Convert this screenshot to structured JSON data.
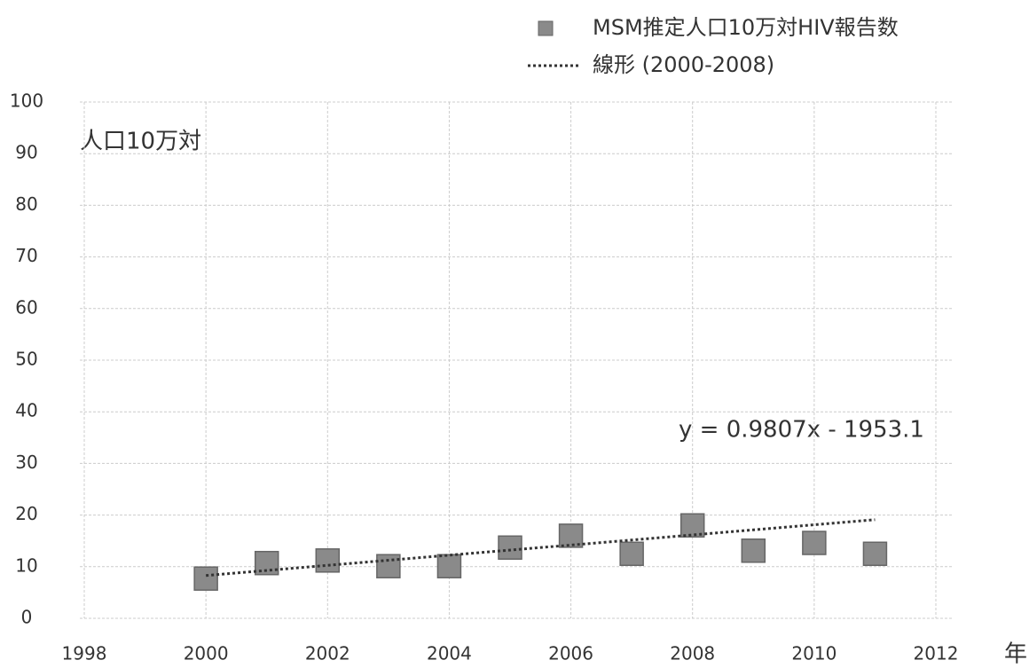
{
  "chart_data": {
    "type": "scatter",
    "y_label": "人口10万対",
    "x_label": "年",
    "annotation": "y = 0.9807x - 1953.1",
    "series": [
      {
        "name": "MSM推定人口10万対HIV報告数",
        "color": "#8a8a8a",
        "x": [
          2000,
          2001,
          2002,
          2003,
          2004,
          2005,
          2006,
          2007,
          2008,
          2009,
          2010,
          2011
        ],
        "values": [
          7.7,
          10.7,
          11.2,
          10.1,
          10.1,
          13.7,
          16.0,
          12.5,
          18.0,
          13.1,
          14.6,
          12.5
        ]
      },
      {
        "name": "線形 (2000-2008)",
        "color": "#333333",
        "kind": "trendline",
        "x": [
          2000,
          2011
        ],
        "values": [
          8.3,
          19.1
        ]
      }
    ],
    "xlim": [
      1998,
      2012
    ],
    "xticks": [
      1998,
      2000,
      2002,
      2004,
      2006,
      2008,
      2010,
      2012
    ],
    "ylim": [
      0,
      100
    ],
    "yticks": [
      0,
      10,
      20,
      30,
      40,
      50,
      60,
      70,
      80,
      90,
      100
    ],
    "grid": true,
    "legend": "top-right"
  }
}
